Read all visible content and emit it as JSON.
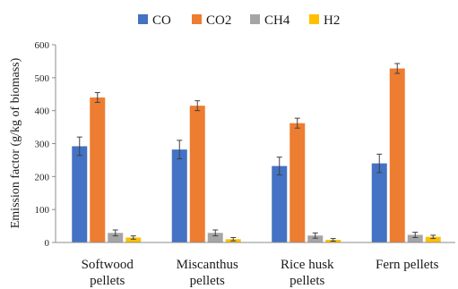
{
  "chart_data": {
    "type": "bar",
    "title": "",
    "xlabel": "",
    "ylabel": "Emission factor (g/kg of biomass)",
    "ylim": [
      0,
      600
    ],
    "yticks": [
      0,
      100,
      200,
      300,
      400,
      500,
      600
    ],
    "categories": [
      [
        "Softwood",
        "pellets"
      ],
      [
        "Miscanthus",
        "pellets"
      ],
      [
        "Rice husk",
        "pellets"
      ],
      [
        "Fern pellets"
      ]
    ],
    "series": [
      {
        "name": "CO",
        "color": "#4472C4",
        "values": [
          292,
          282,
          232,
          240
        ],
        "errors": [
          28,
          28,
          27,
          28
        ]
      },
      {
        "name": "CO2",
        "color": "#ED7D31",
        "values": [
          440,
          415,
          362,
          528
        ],
        "errors": [
          15,
          15,
          15,
          15
        ]
      },
      {
        "name": "CH4",
        "color": "#A5A5A5",
        "values": [
          29,
          29,
          21,
          23
        ],
        "errors": [
          9,
          9,
          8,
          8
        ]
      },
      {
        "name": "H2",
        "color": "#FFC000",
        "values": [
          15,
          10,
          8,
          17
        ],
        "errors": [
          5,
          5,
          4,
          5
        ]
      }
    ],
    "legend_position": "top",
    "grid": false,
    "error_bars": true
  }
}
